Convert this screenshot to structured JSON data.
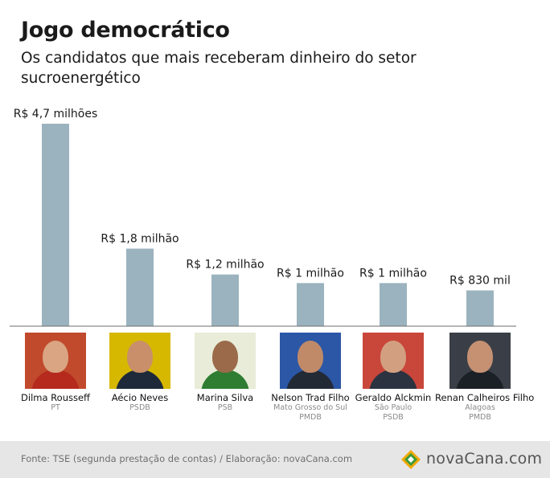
{
  "header": {
    "title": "Jogo democrático",
    "subtitle": "Os candidatos que mais receberam dinheiro do setor sucroenergético"
  },
  "chart_data": {
    "type": "bar",
    "title": "Jogo democrático",
    "subtitle": "Os candidatos que mais receberam dinheiro do setor sucroenergético",
    "categories": [
      "Dilma Rousseff",
      "Aécio Neves",
      "Marina Silva",
      "Nelson Trad Filho",
      "Geraldo Alckmin",
      "Renan Calheiros Filho"
    ],
    "values": [
      4.7,
      1.8,
      1.2,
      1.0,
      1.0,
      0.83
    ],
    "unit": "R$ milhões",
    "data_labels": [
      "R$ 4,7 milhões",
      "R$ 1,8 milhão",
      "R$ 1,2 milhão",
      "R$ 1 milhão",
      "R$ 1 milhão",
      "R$ 830 mil"
    ],
    "ylim": [
      0,
      4.7
    ],
    "bar_color": "#9bb3be",
    "grid": false,
    "legend": "none"
  },
  "candidates": [
    {
      "name": "Dilma Rousseff",
      "details": [
        "PT"
      ],
      "photo": "dilma-rousseff-photo",
      "bg": "#c14a2c",
      "skin": "#d9a583",
      "clothes": "#b52a1c"
    },
    {
      "name": "Aécio Neves",
      "details": [
        "PSDB"
      ],
      "photo": "aecio-neves-photo",
      "bg": "#d7b800",
      "skin": "#c88f6a",
      "clothes": "#1e2a3a"
    },
    {
      "name": "Marina Silva",
      "details": [
        "PSB"
      ],
      "photo": "marina-silva-photo",
      "bg": "#e8ecd8",
      "skin": "#9a6a4a",
      "clothes": "#2e7d32"
    },
    {
      "name": "Nelson Trad Filho",
      "details": [
        "Mato Grosso do Sul",
        "PMDB"
      ],
      "photo": "nelson-trad-filho-photo",
      "bg": "#2b57a6",
      "skin": "#c08a68",
      "clothes": "#222a36"
    },
    {
      "name": "Geraldo Alckmin",
      "details": [
        "São Paulo",
        "PSDB"
      ],
      "photo": "geraldo-alckmin-photo",
      "bg": "#c9463a",
      "skin": "#d2a081",
      "clothes": "#2b3340"
    },
    {
      "name": "Renan Calheiros Filho",
      "details": [
        "Alagoas",
        "PMDB"
      ],
      "photo": "renan-calheiros-filho-photo",
      "bg": "#3a3f47",
      "skin": "#c59172",
      "clothes": "#1b1f26"
    }
  ],
  "footer": {
    "source": "Fonte: TSE (segunda prestação de contas) / Elaboração: novaCana.com",
    "logo_text": "novaCana.com"
  }
}
